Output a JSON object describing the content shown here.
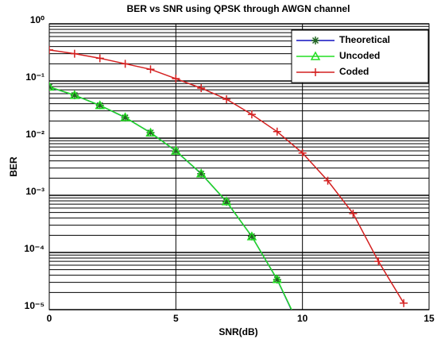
{
  "chart_data": {
    "type": "line",
    "title": "BER vs SNR using QPSK through AWGN channel",
    "xlabel": "SNR(dB)",
    "ylabel": "BER",
    "x": [
      0,
      1,
      2,
      3,
      4,
      5,
      6,
      7,
      8,
      9,
      10,
      11,
      12,
      13,
      14
    ],
    "series": [
      {
        "name": "Theoretical",
        "color": "#1010c0",
        "marker": "star",
        "values": [
          0.0786,
          0.0563,
          0.0375,
          0.0229,
          0.0125,
          0.00595,
          0.00239,
          0.000773,
          0.000191,
          3.36e-05,
          3.87e-06,
          null,
          null,
          null,
          null
        ]
      },
      {
        "name": "Uncoded",
        "color": "#22dd22",
        "marker": "triangle",
        "values": [
          0.079,
          0.0565,
          0.0374,
          0.0231,
          0.0124,
          0.006,
          0.0024,
          0.00078,
          0.00019,
          3.4e-05,
          4e-06,
          null,
          null,
          null,
          null
        ]
      },
      {
        "name": "Coded",
        "color": "#d42020",
        "marker": "plus",
        "values": [
          0.35,
          0.3,
          0.25,
          0.2,
          0.16,
          0.11,
          0.075,
          0.048,
          0.026,
          0.013,
          0.0055,
          0.0018,
          0.00048,
          7e-05,
          1.3e-05
        ]
      }
    ],
    "xlim": [
      0,
      15
    ],
    "xticks": [
      0,
      5,
      10,
      15
    ],
    "ylim": [
      1e-05,
      1
    ],
    "log_y": true,
    "yticks": [
      {
        "value": 1e-05,
        "label": "10⁻⁵"
      },
      {
        "value": 0.0001,
        "label": "10⁻⁴"
      },
      {
        "value": 0.001,
        "label": "10⁻³"
      },
      {
        "value": 0.01,
        "label": "10⁻²"
      },
      {
        "value": 0.1,
        "label": "10⁻¹"
      },
      {
        "value": 1,
        "label": "10⁰"
      }
    ],
    "grid": true,
    "minor_grid": true,
    "legend": "upper right"
  }
}
